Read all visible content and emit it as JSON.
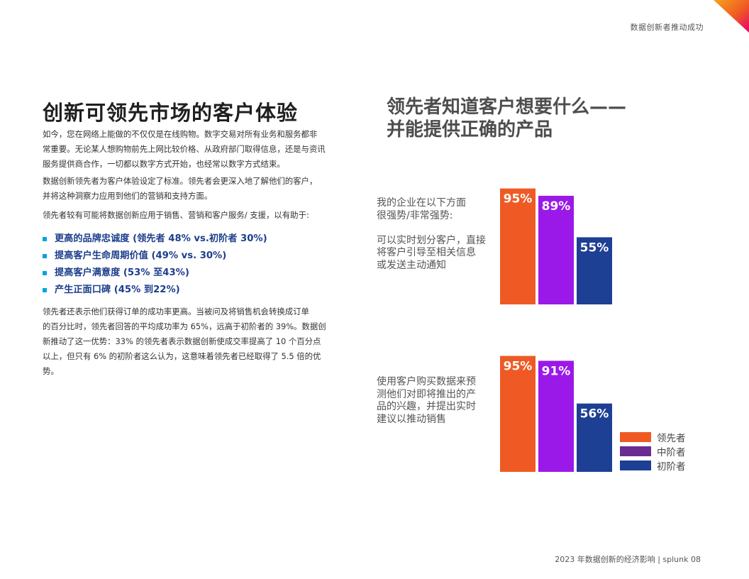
{
  "header": {
    "tag": "数据创新者推动成功"
  },
  "accent": {
    "orange": "#ef5a24",
    "pink": "#e9006d",
    "purple": "#9b19e8",
    "navy": "#1d3f94",
    "cyan": "#00a3e0"
  },
  "left": {
    "title": "创新可领先市场的客户体验",
    "para1_lines": [
      "如今，您在网络上能做的不仅仅是在线购物。数字交易对所有业务和服务都非",
      "常重要。无论某人想购物前先上网比较价格、从政府部门取得信息，还是与资讯",
      "服务提供商合作，一切都以数字方式开始，也经常以数字方式结束。"
    ],
    "para2_lines": [
      "数据创新领先者为客户体验设定了标准。领先者会更深入地了解他们的客户，",
      "并将这种洞察力应用到他们的营销和支持方面。"
    ],
    "para3": "领先者较有可能将数据创新应用于销售、营销和客户服务/ 支援，以有助于:",
    "bullets": [
      "更高的品牌忠诚度 (领先者 48% vs.初阶者 30%)",
      "提高客户生命周期价值 (49% vs. 30%)",
      "提高客户满意度 (53% 至43%)",
      "产生正面口碑 (45% 到22%)"
    ],
    "para4_lines": [
      "领先者还表示他们获得订单的成功率更高。当被问及将销售机会转换成订单",
      "的百分比时，领先者回答的平均成功率为 65%，远高于初阶者的 39%。数据创",
      "新推动了这一优势：33%  的领先者表示数据创新使成交率提高了  10  个百分点",
      "以上，但只有 6%  的初阶者这么认为，这意味着领先者已经取得了 5.5  倍的优",
      "势。"
    ]
  },
  "right": {
    "title_lines": [
      "领先者知道客户想要什么——",
      "并能提供正确的产品"
    ],
    "chart1_label_lines": [
      "我的企业在以下方面",
      "很强势/非常强势:",
      "",
      "可以实时划分客户，直接",
      "将客户引导至相关信息",
      "或发送主动通知"
    ],
    "chart2_label_lines": [
      "使用客户购买数据来预",
      "测他们对即将推出的产",
      "品的兴趣，并提出实时",
      "建议以推动销售"
    ],
    "legend": [
      {
        "label": "领先者",
        "color": "#ef5a24"
      },
      {
        "label": "中阶者",
        "color": "#6b2c91"
      },
      {
        "label": "初阶者",
        "color": "#1d3f94"
      }
    ]
  },
  "chart_data": [
    {
      "type": "bar",
      "categories": [
        "领先者",
        "中阶者",
        "初阶者"
      ],
      "values": [
        95,
        89,
        55
      ],
      "labels": [
        "95%",
        "89%",
        "55%"
      ],
      "colors": [
        "#ef5a24",
        "#9b19e8",
        "#1d3f94"
      ],
      "ylim": [
        0,
        100
      ]
    },
    {
      "type": "bar",
      "categories": [
        "领先者",
        "中阶者",
        "初阶者"
      ],
      "values": [
        95,
        91,
        56
      ],
      "labels": [
        "95%",
        "91%",
        "56%"
      ],
      "colors": [
        "#ef5a24",
        "#9b19e8",
        "#1d3f94"
      ],
      "ylim": [
        0,
        100
      ]
    }
  ],
  "footer": {
    "text": "2023 年数据创新的经济影响 | splunk  08"
  }
}
